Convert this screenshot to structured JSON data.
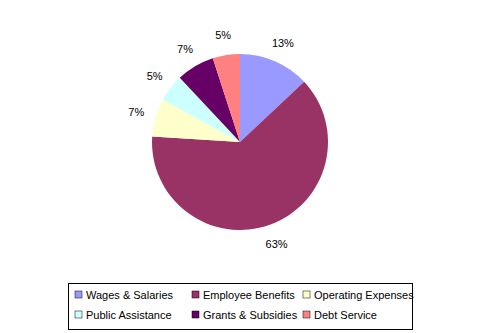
{
  "chart_data": {
    "type": "pie",
    "categories": [
      "Wages & Salaries",
      "Employee Benefits",
      "Operating Expenses",
      "Public Assistance",
      "Grants & Subsidies",
      "Debt Service"
    ],
    "values": [
      13,
      63,
      7,
      5,
      7,
      5
    ],
    "value_labels": [
      "13%",
      "63%",
      "7%",
      "5%",
      "7%",
      "5%"
    ],
    "colors": [
      "#9999ff",
      "#993366",
      "#ffffcc",
      "#ccffff",
      "#660066",
      "#ff8080"
    ],
    "data_labels": true,
    "legend": "bottom"
  }
}
